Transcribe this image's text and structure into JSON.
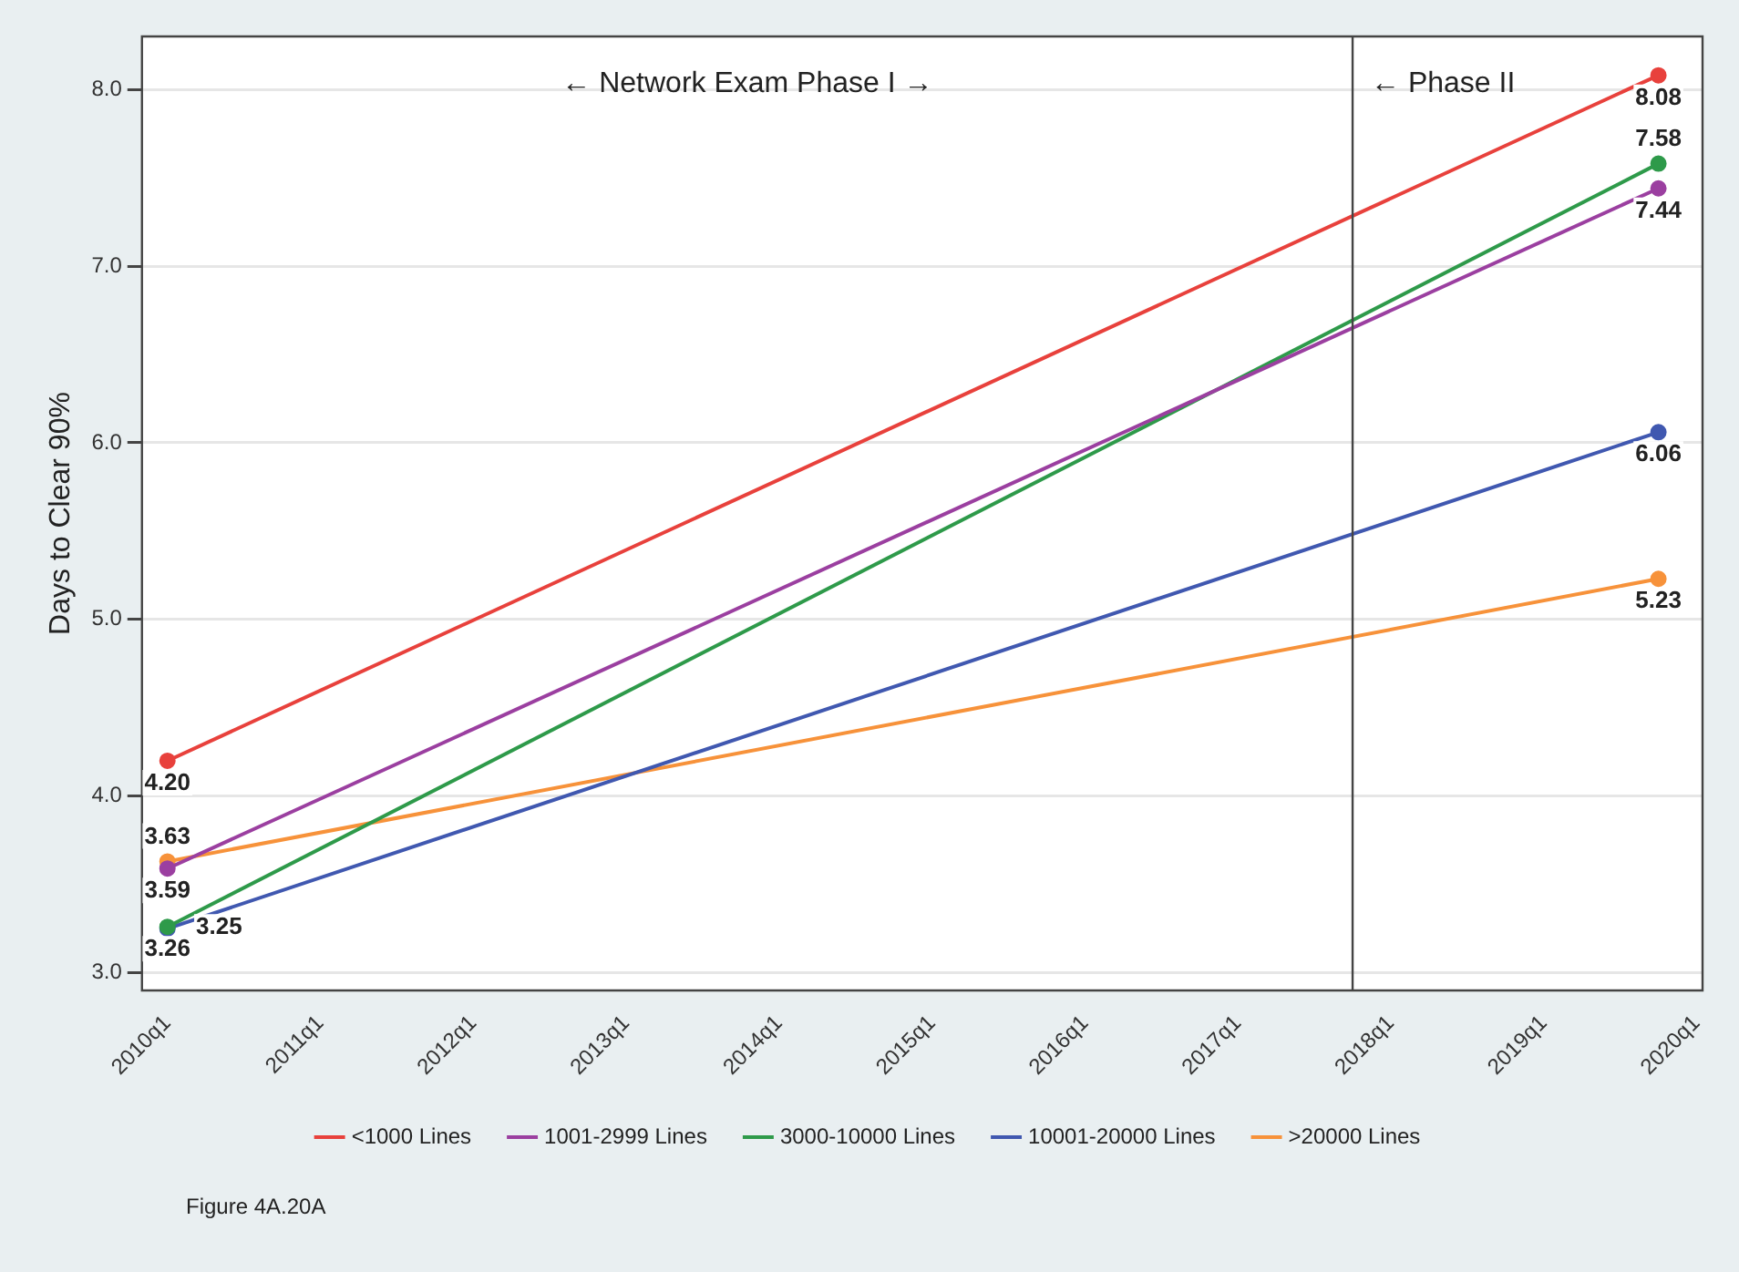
{
  "chart_data": {
    "type": "line",
    "ylabel": "Days to Clear 90%",
    "x": [
      "2010-01",
      "2019-10"
    ],
    "xlim": [
      "2009-11",
      "2020-01-15"
    ],
    "xticks": [
      {
        "value": "2010-01",
        "label": "2010q1"
      },
      {
        "value": "2011-01",
        "label": "2011q1"
      },
      {
        "value": "2012-01",
        "label": "2012q1"
      },
      {
        "value": "2013-01",
        "label": "2013q1"
      },
      {
        "value": "2014-01",
        "label": "2014q1"
      },
      {
        "value": "2015-01",
        "label": "2015q1"
      },
      {
        "value": "2016-01",
        "label": "2016q1"
      },
      {
        "value": "2017-01",
        "label": "2017q1"
      },
      {
        "value": "2018-01",
        "label": "2018q1"
      },
      {
        "value": "2019-01",
        "label": "2019q1"
      },
      {
        "value": "2020-01",
        "label": "2020q1"
      }
    ],
    "ylim": [
      2.9,
      8.3
    ],
    "yticks": [
      {
        "value": 3,
        "label": "3.0"
      },
      {
        "value": 4,
        "label": "4.0"
      },
      {
        "value": 5,
        "label": "5.0"
      },
      {
        "value": 6,
        "label": "6.0"
      },
      {
        "value": 7,
        "label": "7.0"
      },
      {
        "value": 8,
        "label": "8.0"
      }
    ],
    "series": [
      {
        "name": "<1000 Lines",
        "color": "#e8413c",
        "values": [
          4.2,
          8.08
        ],
        "value_labels": [
          "4.20",
          "8.08"
        ]
      },
      {
        "name": "1001-2999 Lines",
        "color": "#9b3fa0",
        "values": [
          3.59,
          7.44
        ],
        "value_labels": [
          "3.59",
          "7.44"
        ]
      },
      {
        "name": "3000-10000 Lines",
        "color": "#2e9a4a",
        "values": [
          3.26,
          7.58
        ],
        "value_labels": [
          "3.26",
          "7.58"
        ]
      },
      {
        "name": "10001-20000 Lines",
        "color": "#4058b0",
        "values": [
          3.25,
          6.06
        ],
        "value_labels": [
          "3.25",
          "6.06"
        ]
      },
      {
        "name": ">20000 Lines",
        "color": "#f7923a",
        "values": [
          3.63,
          5.23
        ],
        "value_labels": [
          "3.63",
          "5.23"
        ]
      }
    ],
    "ref_lines": [
      {
        "axis": "x",
        "value": "2017-10",
        "color": "#444444"
      }
    ],
    "annotations": [
      "← Network Exam Phase I →",
      "← Phase II",
      "Figure 4A.20A"
    ],
    "grid": "y",
    "legend": "bottom",
    "marker": "circle",
    "line_style": "solid"
  }
}
